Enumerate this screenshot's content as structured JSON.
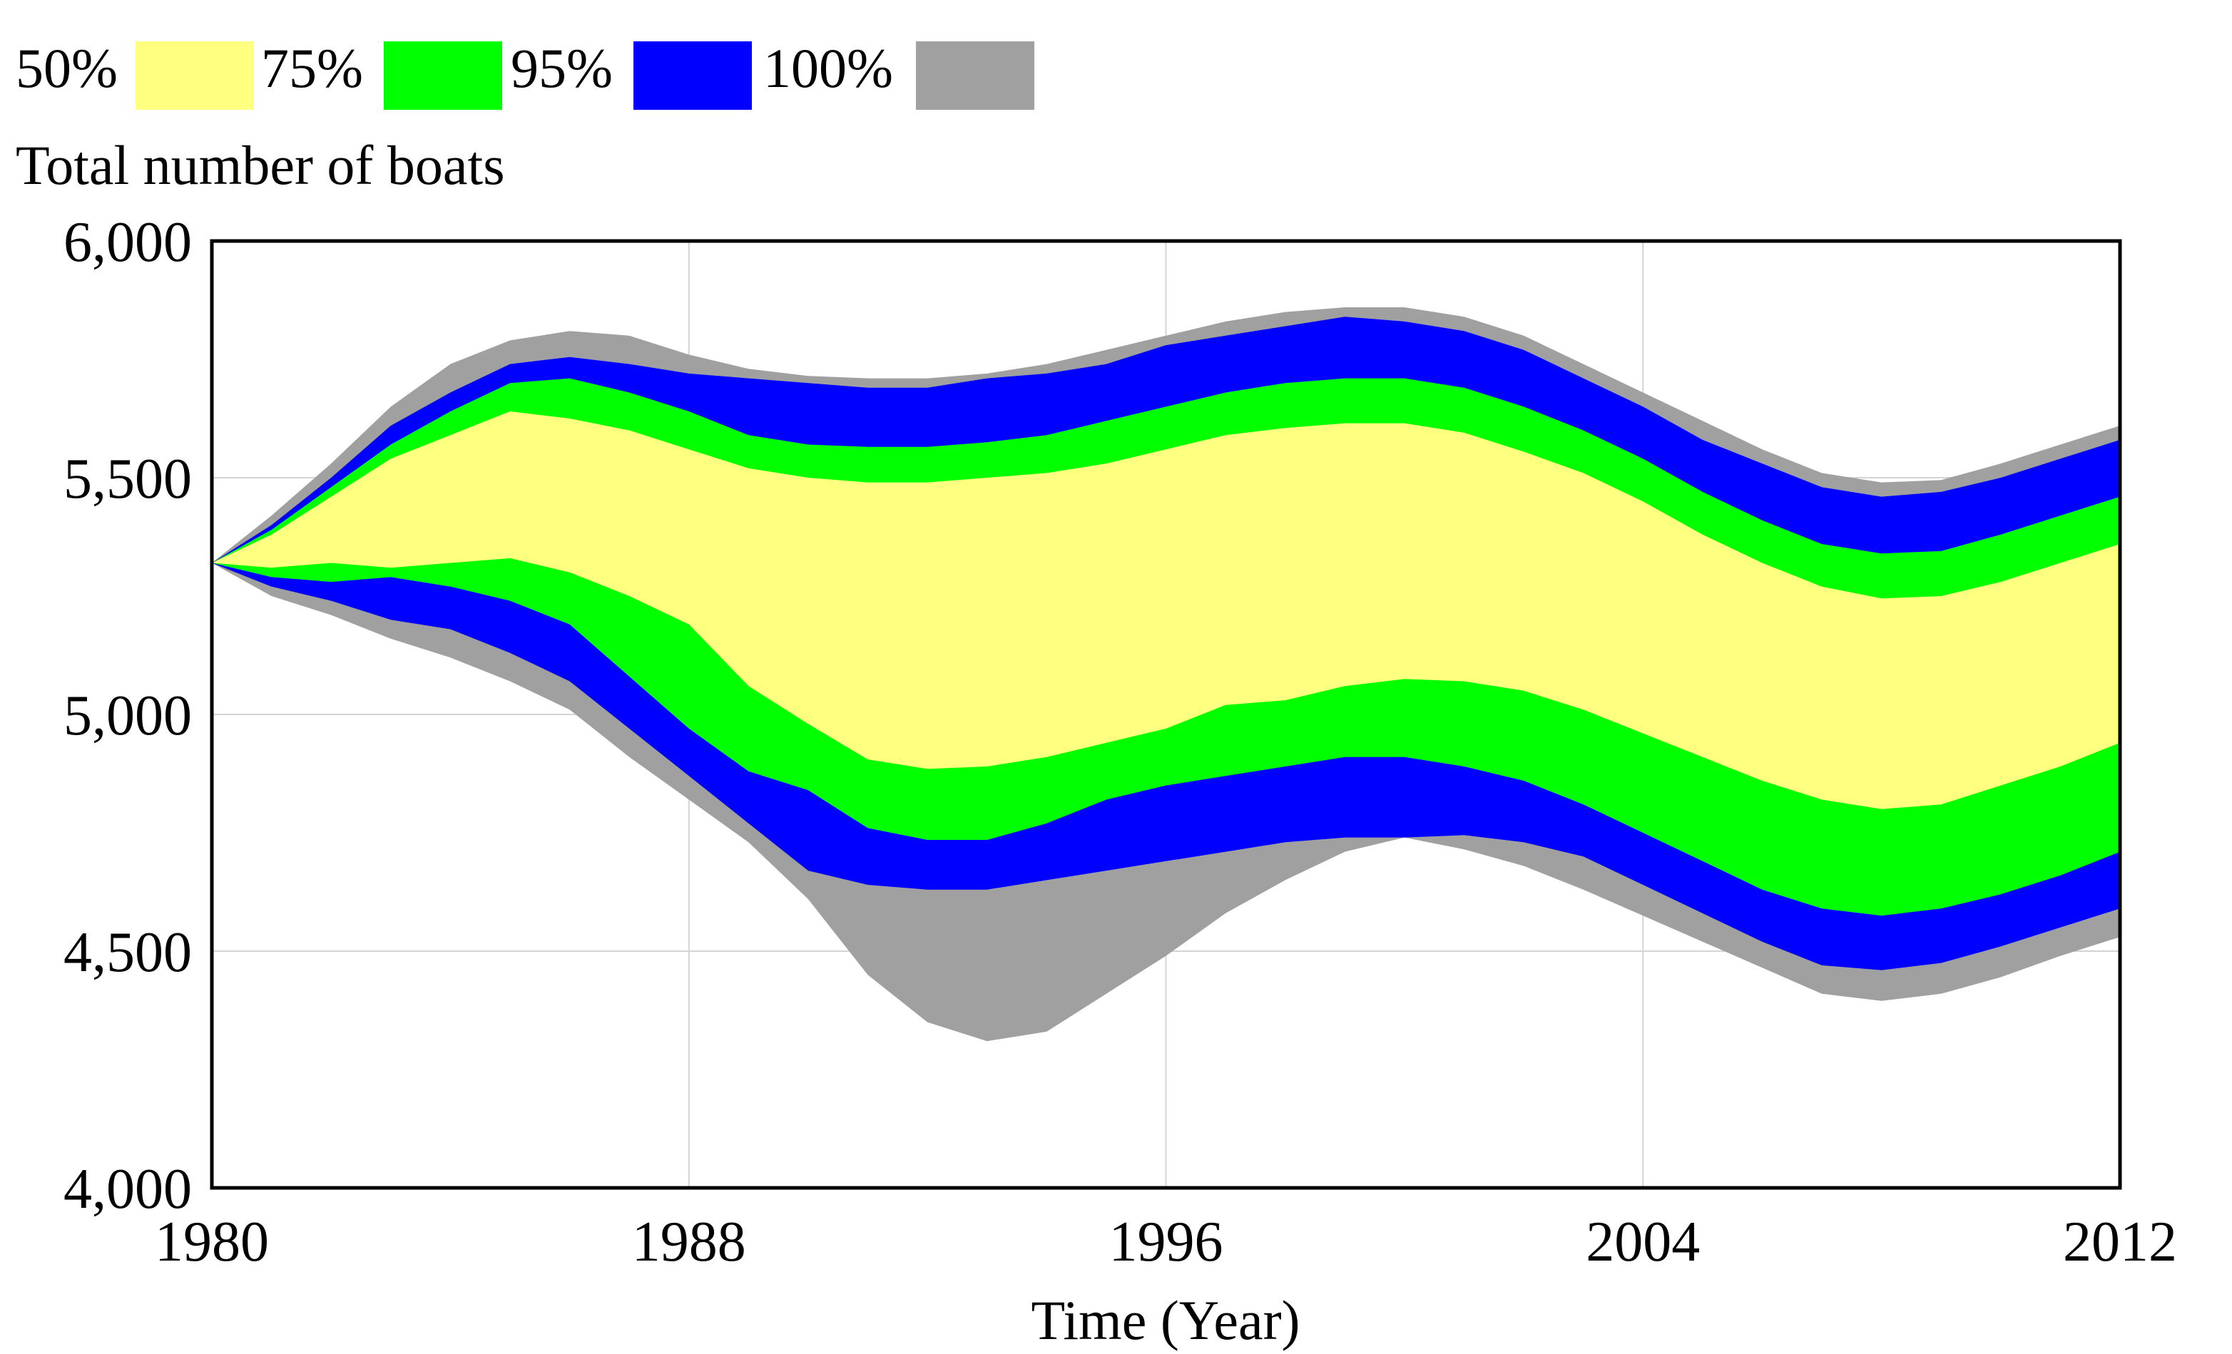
{
  "chart_data": {
    "type": "area",
    "title": "Total number of boats",
    "xlabel": "Time (Year)",
    "ylabel": "",
    "xlim": [
      1980,
      2012
    ],
    "ylim": [
      4000,
      6000
    ],
    "x_ticks": [
      1980,
      1988,
      1996,
      2004,
      2012
    ],
    "x_tick_labels": [
      "1980",
      "1988",
      "1996",
      "2004",
      "2012"
    ],
    "y_ticks": [
      4000,
      4500,
      5000,
      5500,
      6000
    ],
    "y_tick_labels": [
      "4,000",
      "4,500",
      "5,000",
      "5,500",
      "6,000"
    ],
    "grid": true,
    "legend_position": "top-left",
    "legend": [
      {
        "label": "50%",
        "color": "#ffff80"
      },
      {
        "label": "75%",
        "color": "#00ff00"
      },
      {
        "label": "95%",
        "color": "#0000ff"
      },
      {
        "label": "100%",
        "color": "#a0a0a0"
      }
    ],
    "x": [
      1980,
      1981,
      1982,
      1983,
      1984,
      1985,
      1986,
      1987,
      1988,
      1989,
      1990,
      1991,
      1992,
      1993,
      1994,
      1995,
      1996,
      1997,
      1998,
      1999,
      2000,
      2001,
      2002,
      2003,
      2004,
      2005,
      2006,
      2007,
      2008,
      2009,
      2010,
      2011,
      2012
    ],
    "bands": [
      {
        "name": "100%",
        "color": "#a0a0a0",
        "upper": [
          5320,
          5420,
          5530,
          5650,
          5740,
          5790,
          5810,
          5800,
          5760,
          5730,
          5715,
          5710,
          5710,
          5720,
          5740,
          5770,
          5800,
          5830,
          5850,
          5860,
          5860,
          5840,
          5800,
          5740,
          5680,
          5620,
          5560,
          5510,
          5490,
          5495,
          5530,
          5570,
          5610
        ],
        "lower": [
          5320,
          5250,
          5210,
          5160,
          5120,
          5070,
          5010,
          4910,
          4820,
          4730,
          4610,
          4450,
          4350,
          4310,
          4330,
          4410,
          4490,
          4580,
          4650,
          4710,
          4740,
          4715,
          4680,
          4630,
          4575,
          4520,
          4465,
          4410,
          4395,
          4410,
          4445,
          4490,
          4530
        ]
      },
      {
        "name": "95%",
        "color": "#0000ff",
        "upper": [
          5320,
          5400,
          5500,
          5610,
          5680,
          5740,
          5755,
          5740,
          5720,
          5710,
          5700,
          5690,
          5690,
          5710,
          5720,
          5740,
          5780,
          5800,
          5820,
          5840,
          5830,
          5810,
          5770,
          5710,
          5650,
          5580,
          5530,
          5480,
          5460,
          5470,
          5500,
          5540,
          5580
        ],
        "lower": [
          5320,
          5270,
          5240,
          5200,
          5180,
          5130,
          5070,
          4970,
          4870,
          4770,
          4670,
          4640,
          4630,
          4630,
          4650,
          4670,
          4690,
          4710,
          4730,
          4740,
          4740,
          4745,
          4730,
          4700,
          4640,
          4580,
          4520,
          4470,
          4460,
          4475,
          4510,
          4550,
          4590
        ]
      },
      {
        "name": "75%",
        "color": "#00ff00",
        "upper": [
          5320,
          5390,
          5480,
          5570,
          5640,
          5700,
          5710,
          5680,
          5640,
          5590,
          5570,
          5565,
          5565,
          5575,
          5590,
          5620,
          5650,
          5680,
          5700,
          5710,
          5710,
          5690,
          5650,
          5600,
          5540,
          5470,
          5410,
          5360,
          5340,
          5345,
          5380,
          5420,
          5460
        ],
        "lower": [
          5320,
          5290,
          5280,
          5290,
          5270,
          5240,
          5190,
          5080,
          4970,
          4880,
          4840,
          4760,
          4735,
          4735,
          4770,
          4820,
          4850,
          4870,
          4890,
          4910,
          4910,
          4890,
          4860,
          4810,
          4750,
          4690,
          4630,
          4590,
          4575,
          4590,
          4620,
          4660,
          4710
        ]
      },
      {
        "name": "50%",
        "color": "#ffff80",
        "upper": [
          5320,
          5380,
          5460,
          5540,
          5590,
          5640,
          5625,
          5600,
          5560,
          5520,
          5500,
          5490,
          5490,
          5500,
          5510,
          5530,
          5560,
          5590,
          5605,
          5615,
          5615,
          5595,
          5555,
          5510,
          5450,
          5380,
          5320,
          5270,
          5245,
          5250,
          5280,
          5320,
          5360
        ],
        "lower": [
          5320,
          5310,
          5320,
          5310,
          5320,
          5330,
          5300,
          5250,
          5190,
          5060,
          4980,
          4905,
          4885,
          4890,
          4910,
          4940,
          4970,
          5020,
          5030,
          5060,
          5075,
          5070,
          5050,
          5010,
          4960,
          4910,
          4860,
          4820,
          4800,
          4810,
          4850,
          4890,
          4940
        ]
      }
    ]
  }
}
